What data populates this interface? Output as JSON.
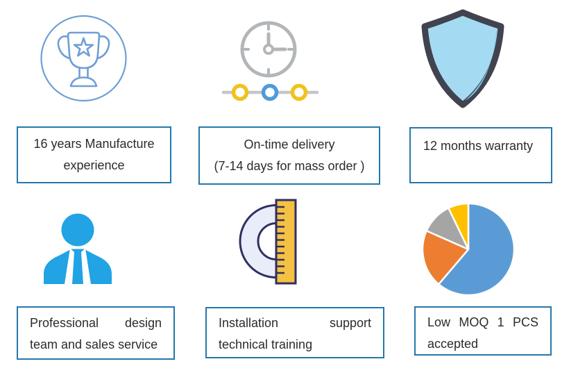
{
  "page": {
    "background": "#ffffff"
  },
  "style": {
    "box_border_color": "#2577AC",
    "text_color": "#2b2b2b",
    "trophy_blue": "#6E9FD4",
    "clock_gray": "#B3B6B9",
    "timeline_yellow": "#F2C21B",
    "timeline_blue": "#4D9BDC",
    "shield_outline": "#41434E",
    "shield_fill": "#A5DBF2",
    "shield_shade": "#7CC7EA",
    "person_blue": "#21A3E4",
    "protractor_fill": "#E9EDF9",
    "protractor_outline": "#2F3061",
    "ruler_yellow": "#F4C142"
  },
  "features": [
    {
      "icon": "trophy-icon",
      "lines": [
        "16 years Manufacture",
        "experience"
      ]
    },
    {
      "icon": "clock-timeline-icon",
      "lines": [
        "On-time delivery",
        "(7-14 days for mass order )"
      ]
    },
    {
      "icon": "shield-icon",
      "lines": [
        "12 months warranty"
      ]
    },
    {
      "icon": "businessman-icon",
      "lines": [
        "Professional design",
        "team and sales service"
      ]
    },
    {
      "icon": "protractor-ruler-icon",
      "lines": [
        "Installation support",
        "technical training"
      ]
    },
    {
      "icon": "pie-chart-icon",
      "lines": [
        "Low MOQ 1 PCS",
        "accepted"
      ]
    }
  ],
  "chart_data": {
    "type": "pie",
    "values": [
      60,
      20,
      11,
      7
    ],
    "colors": [
      "#5B9BD5",
      "#ED7D31",
      "#A5A5A5",
      "#FFC000"
    ],
    "title": "",
    "legend": false,
    "start_angle": "12-o-clock",
    "direction": "clockwise"
  }
}
